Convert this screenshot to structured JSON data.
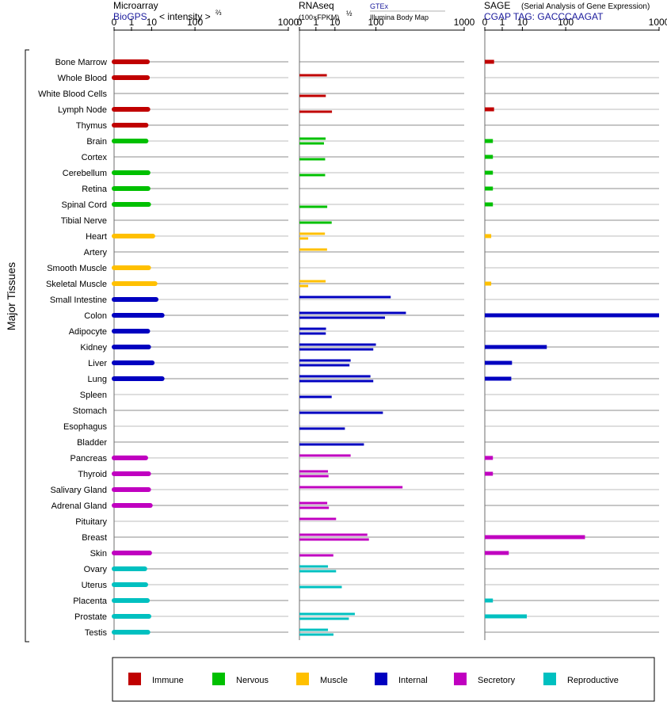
{
  "chart_data": {
    "type": "bar",
    "y_axis_label": "Major Tissues",
    "tick_labels": [
      "0",
      "1",
      "10",
      "100",
      "1000"
    ],
    "tick_values": [
      0,
      1,
      10,
      100,
      1000
    ],
    "categories": [
      "Bone Marrow",
      "Whole Blood",
      "White Blood Cells",
      "Lymph Node",
      "Thymus",
      "Brain",
      "Cortex",
      "Cerebellum",
      "Retina",
      "Spinal Cord",
      "Tibial Nerve",
      "Heart",
      "Artery",
      "Smooth Muscle",
      "Skeletal Muscle",
      "Small Intestine",
      "Colon",
      "Adipocyte",
      "Kidney",
      "Liver",
      "Lung",
      "Spleen",
      "Stomach",
      "Esophagus",
      "Bladder",
      "Pancreas",
      "Thyroid",
      "Salivary Gland",
      "Adrenal Gland",
      "Pituitary",
      "Breast",
      "Skin",
      "Ovary",
      "Uterus",
      "Placenta",
      "Prostate",
      "Testis"
    ],
    "groups": [
      "Immune",
      "Immune",
      "Immune",
      "Immune",
      "Immune",
      "Nervous",
      "Nervous",
      "Nervous",
      "Nervous",
      "Nervous",
      "Nervous",
      "Muscle",
      "Muscle",
      "Muscle",
      "Muscle",
      "Internal",
      "Internal",
      "Internal",
      "Internal",
      "Internal",
      "Internal",
      "Internal",
      "Internal",
      "Internal",
      "Internal",
      "Secretory",
      "Secretory",
      "Secretory",
      "Secretory",
      "Secretory",
      "Secretory",
      "Secretory",
      "Reproductive",
      "Reproductive",
      "Reproductive",
      "Reproductive",
      "Reproductive"
    ],
    "legend": [
      {
        "name": "Immune",
        "color": "#c00000"
      },
      {
        "name": "Nervous",
        "color": "#00c000"
      },
      {
        "name": "Muscle",
        "color": "#ffc000"
      },
      {
        "name": "Internal",
        "color": "#0000c0"
      },
      {
        "name": "Secretory",
        "color": "#c000c0"
      },
      {
        "name": "Reproductive",
        "color": "#00c0c0"
      }
    ],
    "panels": [
      {
        "title": "Microarray",
        "subtitle": "BioGPS",
        "subtitle_extra": "< intensity >",
        "exponent": "⅔",
        "values": [
          7,
          7,
          null,
          7.3,
          6.2,
          6.2,
          null,
          7.4,
          7.4,
          7.8,
          null,
          11,
          null,
          7.8,
          13,
          14,
          21,
          7.2,
          7.8,
          10.5,
          21,
          null,
          null,
          null,
          null,
          6,
          7.8,
          7.8,
          9,
          null,
          null,
          8.5,
          5.5,
          6,
          7,
          8,
          7.3
        ]
      },
      {
        "title": "RNAseq",
        "subtitle_small": "(100×FPKM)",
        "exponent": "½",
        "legend_top": "GTEx",
        "legend_bottom": "Illumina Body Map",
        "values_gtex": [
          null,
          4.6,
          null,
          null,
          null,
          4,
          null,
          null,
          null,
          null,
          null,
          3.7,
          4.7,
          null,
          4,
          170,
          270,
          4.2,
          100,
          30,
          80,
          null,
          null,
          null,
          null,
          30,
          5.2,
          245,
          4.8,
          11,
          70,
          null,
          5.2,
          null,
          null,
          38,
          5.2
        ],
        "values_ibm": [
          null,
          null,
          4.1,
          7.7,
          null,
          3.3,
          3.8,
          3.8,
          null,
          4.8,
          7.5,
          0.15,
          null,
          null,
          0.15,
          null,
          140,
          4.1,
          90,
          28,
          90,
          7.5,
          130,
          21,
          60,
          null,
          5.5,
          null,
          5.7,
          null,
          75,
          8.7,
          11,
          17,
          null,
          27,
          8.8
        ]
      },
      {
        "title": "SAGE",
        "title_extra": "(Serial Analysis of Gene Expression)",
        "subtitle": "CGAP TAG: GACCCAAGAT",
        "values": [
          0.15,
          null,
          null,
          0.15,
          null,
          0.1,
          0.1,
          0.1,
          0.1,
          0.1,
          null,
          0.05,
          null,
          null,
          0.05,
          null,
          1100,
          null,
          45,
          3.8,
          3.5,
          null,
          null,
          null,
          null,
          0.1,
          0.1,
          null,
          null,
          null,
          190,
          2.6,
          null,
          null,
          0.1,
          14,
          null
        ]
      }
    ]
  }
}
